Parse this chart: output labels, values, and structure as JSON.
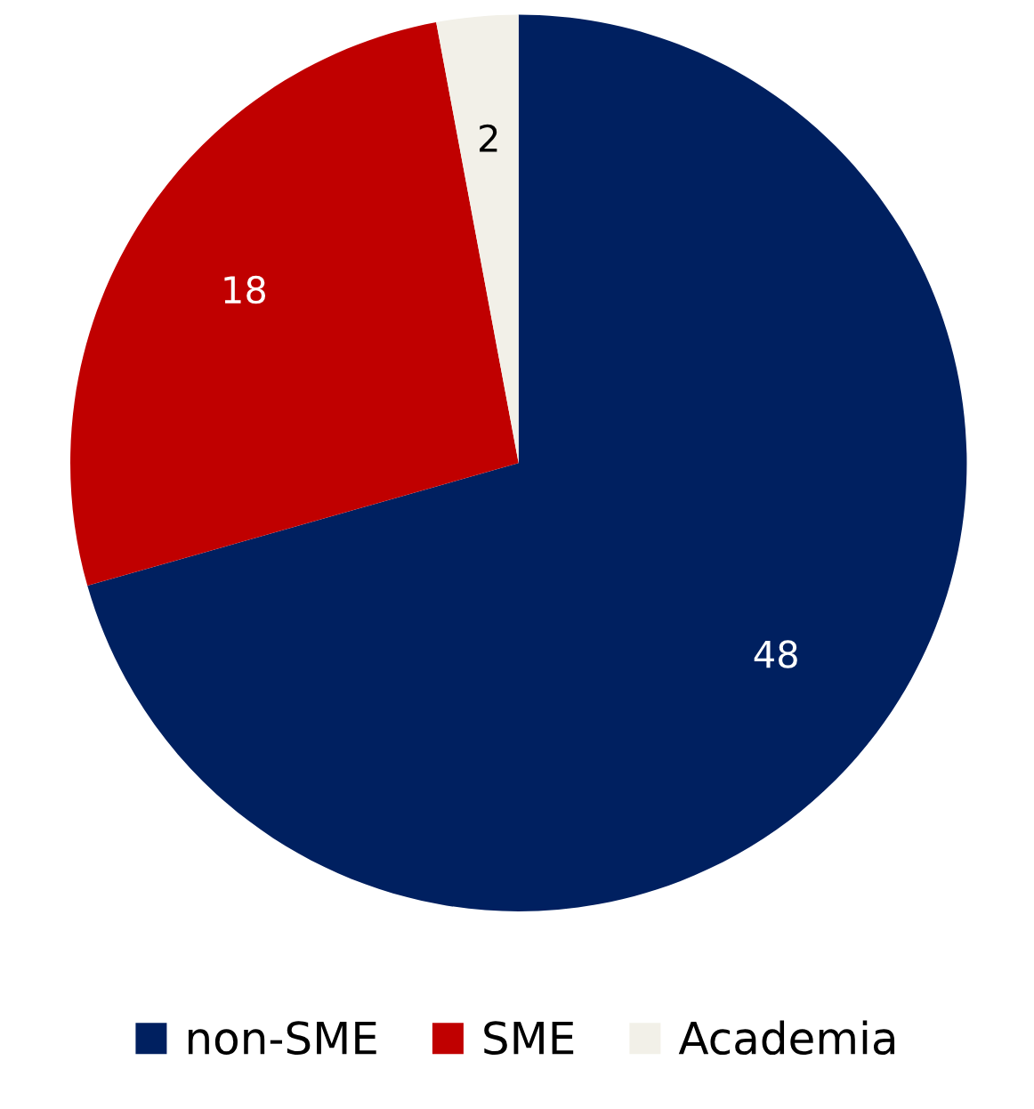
{
  "chart_data": {
    "type": "pie",
    "categories": [
      "non-SME",
      "SME",
      "Academia"
    ],
    "values": [
      48,
      18,
      2
    ],
    "colors": [
      "#002060",
      "#c00000",
      "#f2f0e8"
    ],
    "data_labels": true,
    "legend": "bottom"
  }
}
